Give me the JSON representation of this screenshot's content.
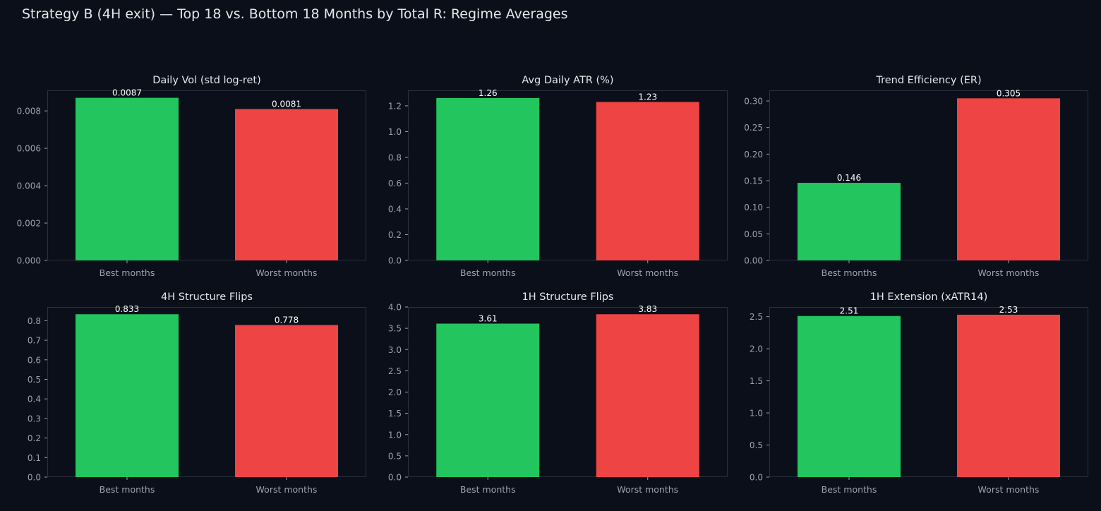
{
  "figure": {
    "title": "Strategy B (4H exit) — Top 18 vs. Bottom 18 Months by Total R: Regime Averages"
  },
  "colors": {
    "background": "#0b0f19",
    "plot_border": "#2a3040",
    "tick_text": "#9aa3b2",
    "title_text": "#e5e7eb",
    "label_text": "#ffffff",
    "best": "#22c55e",
    "worst": "#ef4444"
  },
  "chart_data": [
    {
      "type": "bar",
      "title": "Daily Vol (std log-ret)",
      "categories": [
        "Best months",
        "Worst months"
      ],
      "values": [
        0.0087,
        0.0081
      ],
      "value_labels": [
        "0.0087",
        "0.0081"
      ],
      "ylim": [
        0,
        0.0091
      ],
      "yticks": [
        "0.000",
        "0.002",
        "0.004",
        "0.006",
        "0.008"
      ],
      "grid": false
    },
    {
      "type": "bar",
      "title": "Avg Daily ATR (%)",
      "categories": [
        "Best months",
        "Worst months"
      ],
      "values": [
        1.26,
        1.23
      ],
      "value_labels": [
        "1.26",
        "1.23"
      ],
      "ylim": [
        0,
        1.32
      ],
      "yticks": [
        "0.0",
        "0.2",
        "0.4",
        "0.6",
        "0.8",
        "1.0",
        "1.2"
      ],
      "grid": false
    },
    {
      "type": "bar",
      "title": "Trend Efficiency (ER)",
      "categories": [
        "Best months",
        "Worst months"
      ],
      "values": [
        0.146,
        0.305
      ],
      "value_labels": [
        "0.146",
        "0.305"
      ],
      "ylim": [
        0,
        0.32
      ],
      "yticks": [
        "0.00",
        "0.05",
        "0.10",
        "0.15",
        "0.20",
        "0.25",
        "0.30"
      ],
      "grid": false
    },
    {
      "type": "bar",
      "title": "4H Structure Flips",
      "categories": [
        "Best months",
        "Worst months"
      ],
      "values": [
        0.833,
        0.778
      ],
      "value_labels": [
        "0.833",
        "0.778"
      ],
      "ylim": [
        0,
        0.87
      ],
      "yticks": [
        "0.0",
        "0.1",
        "0.2",
        "0.3",
        "0.4",
        "0.5",
        "0.6",
        "0.7",
        "0.8"
      ],
      "grid": false
    },
    {
      "type": "bar",
      "title": "1H Structure Flips",
      "categories": [
        "Best months",
        "Worst months"
      ],
      "values": [
        3.61,
        3.83
      ],
      "value_labels": [
        "3.61",
        "3.83"
      ],
      "ylim": [
        0,
        4.0
      ],
      "yticks": [
        "0.0",
        "0.5",
        "1.0",
        "1.5",
        "2.0",
        "2.5",
        "3.0",
        "3.5",
        "4.0"
      ],
      "grid": false
    },
    {
      "type": "bar",
      "title": "1H Extension (xATR14)",
      "categories": [
        "Best months",
        "Worst months"
      ],
      "values": [
        2.51,
        2.53
      ],
      "value_labels": [
        "2.51",
        "2.53"
      ],
      "ylim": [
        0,
        2.65
      ],
      "yticks": [
        "0.0",
        "0.5",
        "1.0",
        "1.5",
        "2.0",
        "2.5"
      ],
      "grid": false
    }
  ]
}
